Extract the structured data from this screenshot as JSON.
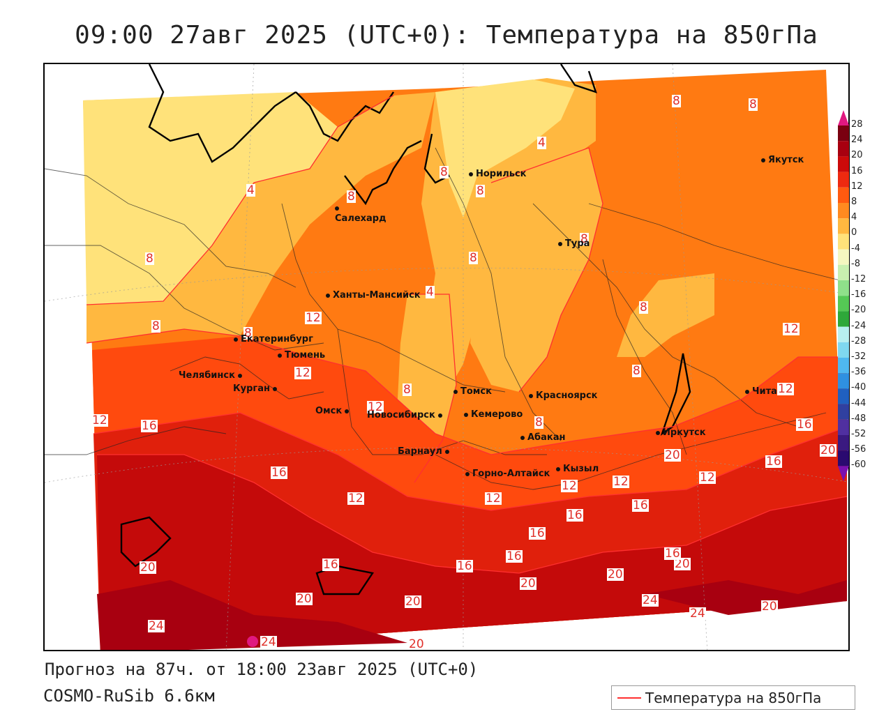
{
  "header": {
    "title": "09:00 27авг 2025 (UTC+0): Температура на 850гПа"
  },
  "footer": {
    "forecast": "Прогноз на 87ч. от 18:00 23авг 2025 (UTC+0)",
    "model": "COSMO-RuSib 6.6км",
    "legend_label": "Температура на 850гПа"
  },
  "colorbar": {
    "labels": [
      "28",
      "24",
      "20",
      "16",
      "12",
      "8",
      "4",
      "0",
      "-4",
      "-8",
      "-12",
      "-16",
      "-20",
      "-24",
      "-28",
      "-32",
      "-36",
      "-40",
      "-44",
      "-48",
      "-52",
      "-56",
      "-60"
    ],
    "colors": [
      "#7a0010",
      "#a80010",
      "#cc0a0a",
      "#ee2a10",
      "#ff5a10",
      "#ff8a20",
      "#ffb840",
      "#ffe27a",
      "#f5f7c0",
      "#c9f0b0",
      "#8fe08a",
      "#55c855",
      "#2ea83a",
      "#b8f0f0",
      "#7fd8f0",
      "#4fb8f0",
      "#2f90e0",
      "#2060c0",
      "#3040a0",
      "#5030a0",
      "#3a1a80",
      "#2a0a70"
    ]
  },
  "cities": [
    {
      "name": "Норильск"
    },
    {
      "name": "Салехард"
    },
    {
      "name": "Якутск"
    },
    {
      "name": "Тура"
    },
    {
      "name": "Ханты-Мансийск"
    },
    {
      "name": "Екатеринбург"
    },
    {
      "name": "Тюмень"
    },
    {
      "name": "Челябинск"
    },
    {
      "name": "Курган"
    },
    {
      "name": "Омск"
    },
    {
      "name": "Новосибирск"
    },
    {
      "name": "Томск"
    },
    {
      "name": "Кемерово"
    },
    {
      "name": "Красноярск"
    },
    {
      "name": "Барнаул"
    },
    {
      "name": "Абакан"
    },
    {
      "name": "Горно-Алтайск"
    },
    {
      "name": "Кызыл"
    },
    {
      "name": "Иркутск"
    },
    {
      "name": "Чита"
    }
  ],
  "isotherm_labels": [
    "8",
    "8",
    "4",
    "8",
    "8",
    "4",
    "8",
    "8",
    "8",
    "8",
    "4",
    "12",
    "8",
    "8",
    "12",
    "12",
    "8",
    "8",
    "8",
    "12",
    "12",
    "16",
    "8",
    "12",
    "16",
    "16",
    "12",
    "12",
    "12",
    "16",
    "16",
    "12",
    "16",
    "16",
    "16",
    "12",
    "16",
    "20",
    "16",
    "20",
    "20",
    "20",
    "20",
    "16",
    "20",
    "20",
    "20",
    "24",
    "24",
    "24",
    "24",
    "20",
    "20"
  ]
}
